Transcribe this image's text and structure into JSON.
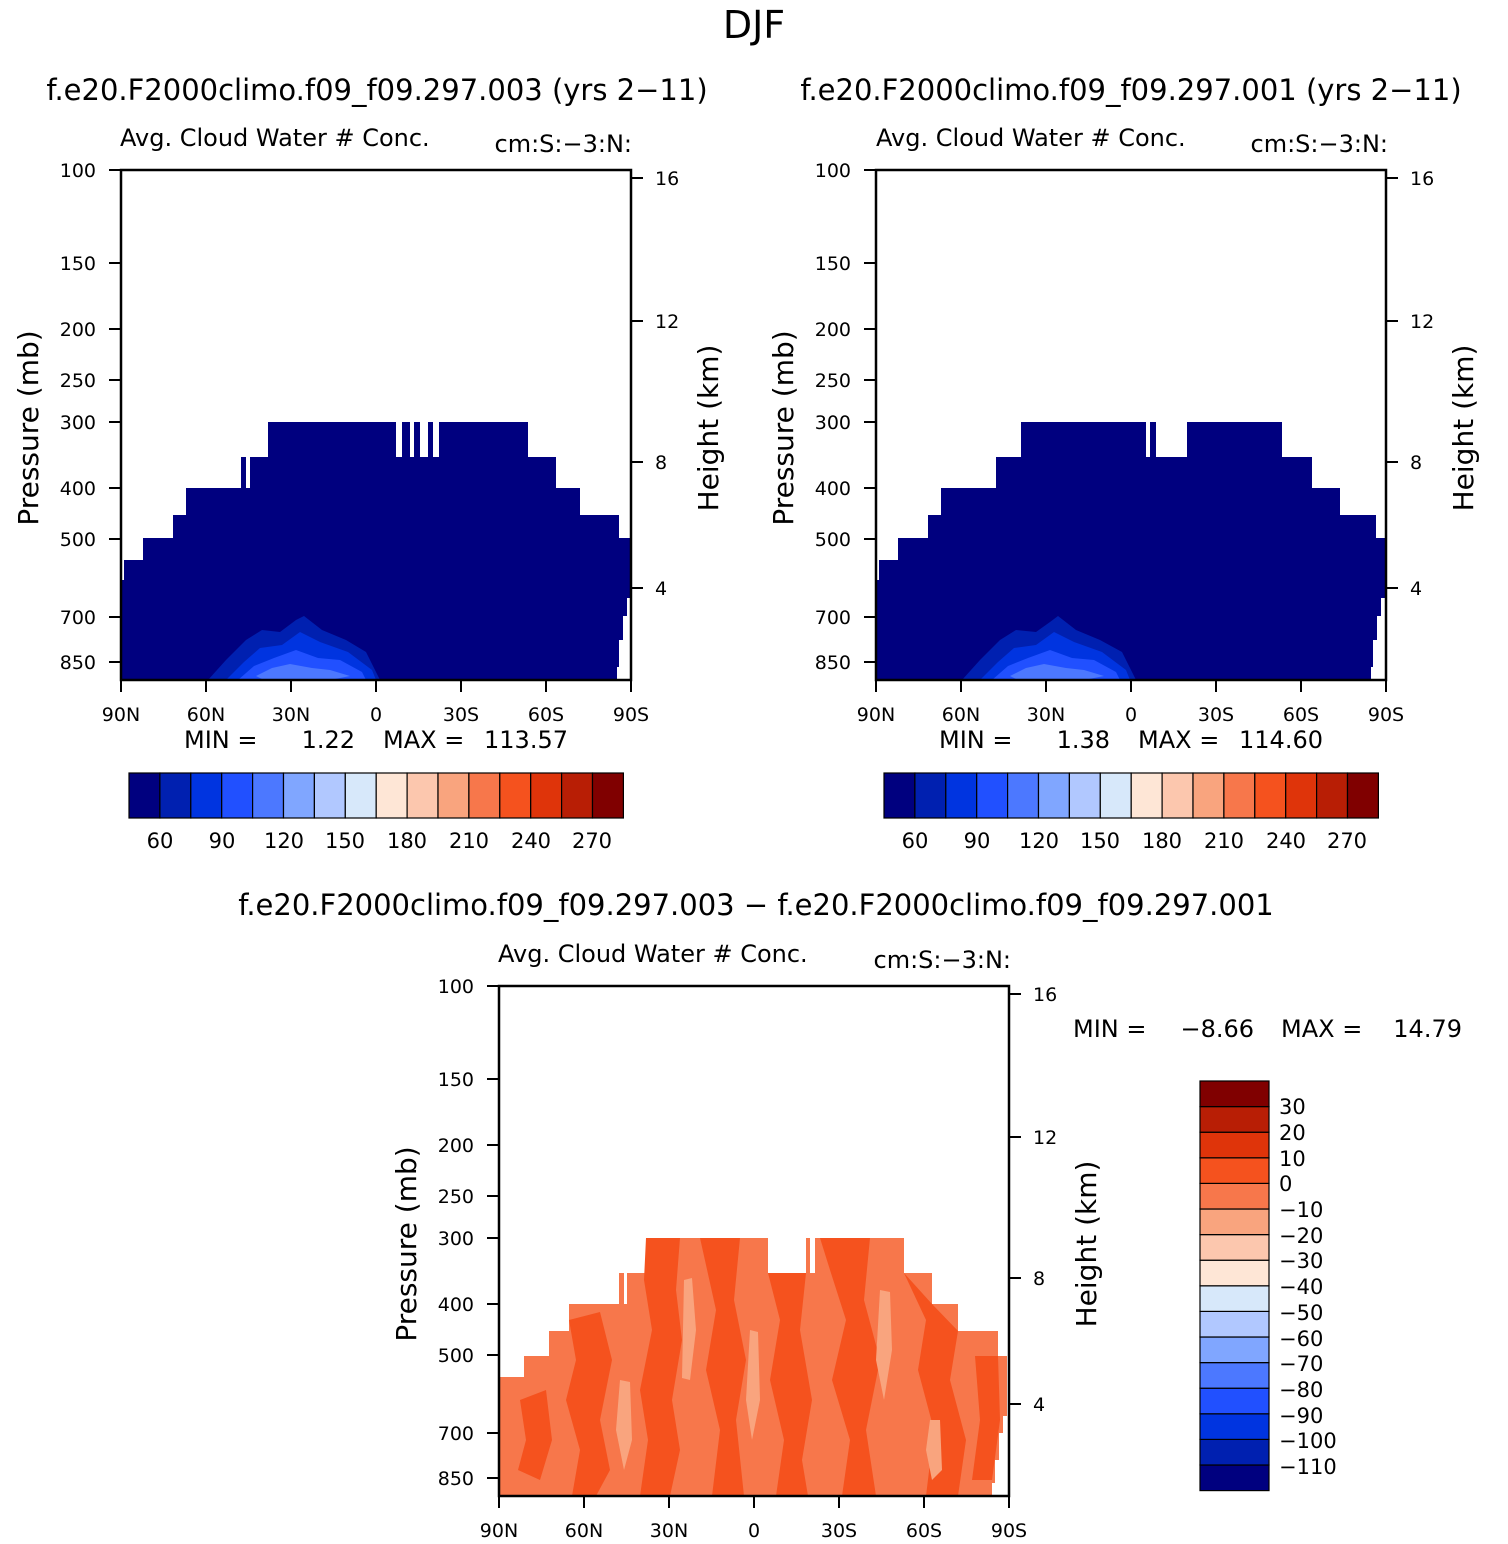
{
  "page_title": "DJF",
  "colors": {
    "abs_scale": [
      "#00007f",
      "#0020b0",
      "#0034e0",
      "#2150ff",
      "#4c78ff",
      "#80a6ff",
      "#b1c8ff",
      "#d7e8fa",
      "#fee6d6",
      "#fcc7ae",
      "#f9a47e",
      "#f7774b",
      "#f5521e",
      "#df340a",
      "#b81e05",
      "#800000"
    ],
    "diff_scale": [
      "#00007f",
      "#0020b0",
      "#0034e0",
      "#2150ff",
      "#4c78ff",
      "#80a6ff",
      "#b1c8ff",
      "#d7e8fa",
      "#fee6d6",
      "#fcc7ae",
      "#f9a47e",
      "#f7774b",
      "#f5521e",
      "#df340a",
      "#b81e05",
      "#800000"
    ]
  },
  "chart_data": [
    {
      "type": "heatmap",
      "id": "left",
      "title": "f.e20.F2000climo.f09_f09.297.003 (yrs 2-11)",
      "subtitle_left": "Avg. Cloud Water # Conc.",
      "subtitle_right": "cm:S:-3:N:",
      "ylabel": "Pressure (mb)",
      "ylabel_right": "Height (km)",
      "x_ticks": [
        "90N",
        "60N",
        "30N",
        "0",
        "30S",
        "60S",
        "90S"
      ],
      "y_ticks": [
        "100",
        "150",
        "200",
        "250",
        "300",
        "400",
        "500",
        "700",
        "850"
      ],
      "y_ticks_right": [
        "16",
        "12",
        "8",
        "4"
      ],
      "min_label": "MIN =",
      "min_value": "1.22",
      "max_label": "MAX =",
      "max_value": "113.57",
      "colorbar_labels": [
        "60",
        "90",
        "120",
        "150",
        "180",
        "210",
        "240",
        "270"
      ]
    },
    {
      "type": "heatmap",
      "id": "right",
      "title": "f.e20.F2000climo.f09_f09.297.001 (yrs 2-11)",
      "subtitle_left": "Avg. Cloud Water # Conc.",
      "subtitle_right": "cm:S:-3:N:",
      "ylabel": "Pressure (mb)",
      "ylabel_right": "Height (km)",
      "x_ticks": [
        "90N",
        "60N",
        "30N",
        "0",
        "30S",
        "60S",
        "90S"
      ],
      "y_ticks": [
        "100",
        "150",
        "200",
        "250",
        "300",
        "400",
        "500",
        "700",
        "850"
      ],
      "y_ticks_right": [
        "16",
        "12",
        "8",
        "4"
      ],
      "min_label": "MIN =",
      "min_value": "1.38",
      "max_label": "MAX =",
      "max_value": "114.60",
      "colorbar_labels": [
        "60",
        "90",
        "120",
        "150",
        "180",
        "210",
        "240",
        "270"
      ]
    },
    {
      "type": "heatmap",
      "id": "diff",
      "title": "f.e20.F2000climo.f09_f09.297.003 - f.e20.F2000climo.f09_f09.297.001",
      "subtitle_left": "Avg. Cloud Water # Conc.",
      "subtitle_right": "cm:S:-3:N:",
      "ylabel": "Pressure (mb)",
      "ylabel_right": "Height (km)",
      "x_ticks": [
        "90N",
        "60N",
        "30N",
        "0",
        "30S",
        "60S",
        "90S"
      ],
      "y_ticks": [
        "100",
        "150",
        "200",
        "250",
        "300",
        "400",
        "500",
        "700",
        "850"
      ],
      "y_ticks_right": [
        "16",
        "12",
        "8",
        "4"
      ],
      "min_label": "MIN =",
      "min_value": "-8.66",
      "max_label": "MAX =",
      "max_value": "14.79",
      "colorbar_labels": [
        "30",
        "20",
        "10",
        "0",
        "-10",
        "-20",
        "-30",
        "-40",
        "-50",
        "-60",
        "-70",
        "-80",
        "-90",
        "-100",
        "-110"
      ]
    }
  ]
}
